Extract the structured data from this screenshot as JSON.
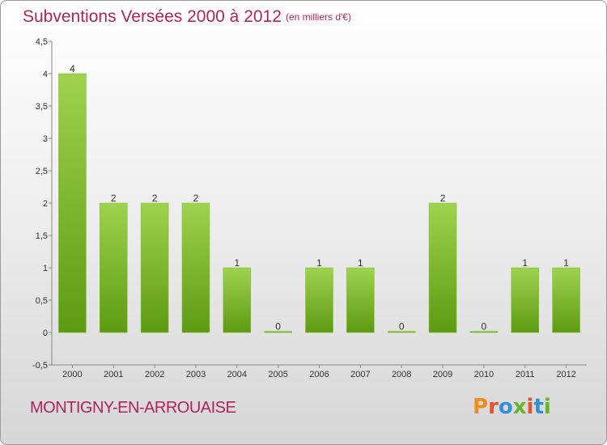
{
  "header": {
    "title": "Subventions Versées 2000 à 2012",
    "subtitle": "(en milliers d'€)"
  },
  "footer": {
    "place": "MONTIGNY-EN-ARROUAISE",
    "logo": "Proxiti"
  },
  "colors": {
    "accent": "#b0245a",
    "bar_light": "#9ed24f",
    "bar_dark": "#5e9a12",
    "logo_letters": [
      "#f08c1e",
      "#e0532b",
      "#2f8fd8",
      "#66b32e",
      "#e0532b",
      "#2f8fd8",
      "#66b32e"
    ]
  },
  "chart_data": {
    "type": "bar",
    "title": "Subventions Versées 2000 à 2012",
    "subtitle": "(en milliers d'€)",
    "xlabel": "",
    "ylabel": "",
    "categories": [
      "2000",
      "2001",
      "2002",
      "2003",
      "2004",
      "2005",
      "2006",
      "2007",
      "2008",
      "2009",
      "2010",
      "2011",
      "2012"
    ],
    "values": [
      4,
      2,
      2,
      2,
      1,
      0,
      1,
      1,
      0,
      2,
      0,
      1,
      1
    ],
    "value_labels": [
      "4",
      "2",
      "2",
      "2",
      "1",
      "0",
      "1",
      "1",
      "0",
      "2",
      "0",
      "1",
      "1"
    ],
    "ylim": [
      -0.5,
      4.5
    ],
    "y_ticks": [
      "-0,5",
      "0",
      "0,5",
      "1",
      "1,5",
      "2",
      "2,5",
      "3",
      "3,5",
      "4",
      "4,5"
    ],
    "grid": false,
    "legend": "none"
  }
}
